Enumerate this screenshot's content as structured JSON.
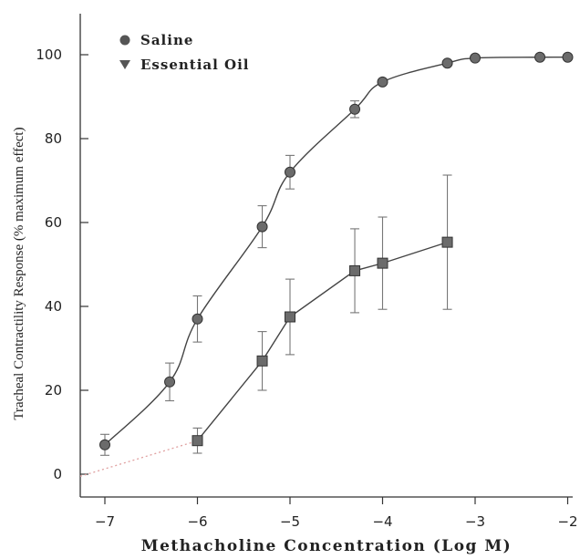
{
  "chart_data": {
    "type": "line",
    "xlabel": "Methacholine Concentration (Log M)",
    "ylabel": "Tracheal Contractility Response (% maximum effect)",
    "xlim": [
      -7.3,
      -2
    ],
    "ylim": [
      -5,
      110
    ],
    "x_ticks": [
      -7,
      -6,
      -5,
      -4,
      -3,
      -2
    ],
    "x_tick_labels": [
      "−7",
      "−6",
      "−5",
      "−4",
      "−3",
      "−2"
    ],
    "y_ticks": [
      0,
      20,
      40,
      60,
      80,
      100
    ],
    "y_tick_labels": [
      "0",
      "20",
      "40",
      "60",
      "80",
      "100"
    ],
    "legend_position": "top-left",
    "grid": false,
    "series": [
      {
        "name": "Saline",
        "marker": "circle",
        "color": "#6b6b6b",
        "points": [
          {
            "x": -7.0,
            "y": 7,
            "err": 2.5
          },
          {
            "x": -6.3,
            "y": 22,
            "err": 4.5
          },
          {
            "x": -6.0,
            "y": 37,
            "err": 5.5
          },
          {
            "x": -5.3,
            "y": 59,
            "err": 5.0
          },
          {
            "x": -5.0,
            "y": 72,
            "err": 4.0
          },
          {
            "x": -4.3,
            "y": 87,
            "err": 2.0
          },
          {
            "x": -4.0,
            "y": 93.5,
            "err": 0
          },
          {
            "x": -3.3,
            "y": 98,
            "err": 0
          },
          {
            "x": -3.0,
            "y": 99.2,
            "err": 0
          },
          {
            "x": -2.3,
            "y": 99.4,
            "err": 0
          },
          {
            "x": -2.0,
            "y": 99.4,
            "err": 0
          }
        ]
      },
      {
        "name": "Essential Oil",
        "marker": "triangle-down",
        "color": "#6b6b6b",
        "points": [
          {
            "x": -6.0,
            "y": 8,
            "err": 3.0
          },
          {
            "x": -5.3,
            "y": 27,
            "err": 7.0
          },
          {
            "x": -5.0,
            "y": 37.5,
            "err": 9.0
          },
          {
            "x": -4.3,
            "y": 48.5,
            "err": 10.0
          },
          {
            "x": -4.0,
            "y": 50.3,
            "err": 11.0
          },
          {
            "x": -3.3,
            "y": 55.3,
            "err": 16.0
          }
        ]
      }
    ]
  }
}
